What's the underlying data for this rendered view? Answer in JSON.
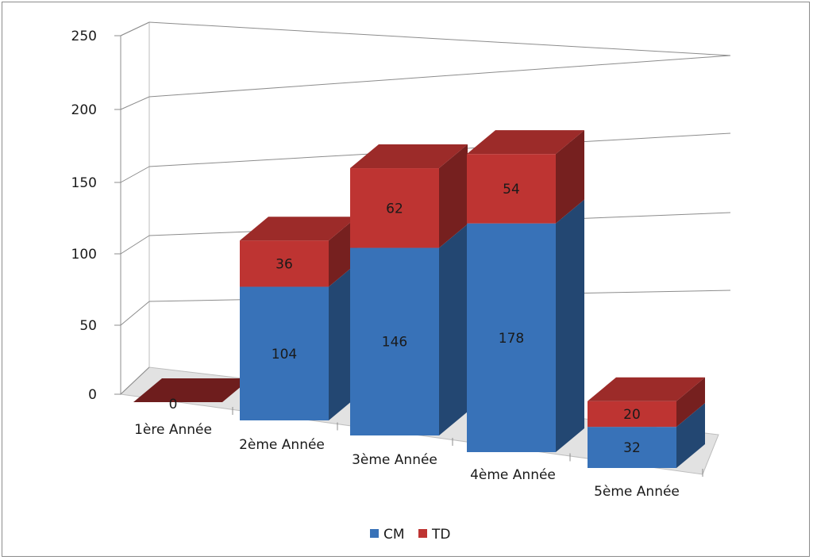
{
  "chart_data": {
    "type": "bar",
    "stacked": true,
    "three_d": true,
    "categories": [
      "1ère Année",
      "2ème Année",
      "3ème Année",
      "4ème Année",
      "5ème Année"
    ],
    "series": [
      {
        "name": "CM",
        "values": [
          0,
          104,
          146,
          178,
          32
        ],
        "color": "#3872B8"
      },
      {
        "name": "TD",
        "values": [
          0,
          36,
          62,
          54,
          20
        ],
        "color": "#BE3432"
      }
    ],
    "y_ticks": [
      "0",
      "50",
      "100",
      "150",
      "200",
      "250"
    ],
    "ylim": [
      0,
      250
    ],
    "grid": true,
    "legend_position": "bottom",
    "data_labels": true
  }
}
